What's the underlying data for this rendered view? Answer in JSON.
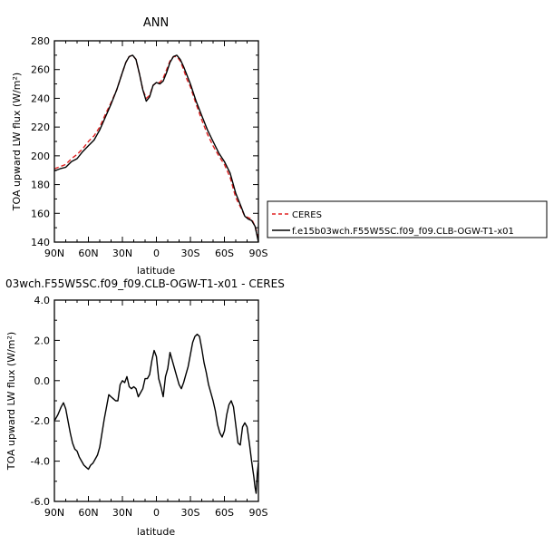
{
  "chart_data": [
    {
      "type": "line",
      "title": "ANN",
      "xlabel": "latitude",
      "ylabel": "TOA upward LW flux (W/m²)",
      "ylim": [
        140,
        280
      ],
      "yticks": [
        140,
        160,
        180,
        200,
        220,
        240,
        260,
        280
      ],
      "xlim": [
        90,
        -90
      ],
      "xticks": [
        90,
        60,
        30,
        0,
        -30,
        -60,
        -90
      ],
      "xtick_labels": [
        "90N",
        "60N",
        "30N",
        "0",
        "30S",
        "60S",
        "90S"
      ],
      "legend_placement": "right, outside plot",
      "series": [
        {
          "name": "CERES",
          "color": "#e02020",
          "dash": "dashed",
          "x": [
            90,
            85,
            80,
            75,
            70,
            65,
            60,
            55,
            50,
            45,
            40,
            35,
            30,
            27,
            24,
            21,
            18,
            15,
            12,
            9,
            6,
            3,
            0,
            -3,
            -6,
            -9,
            -12,
            -15,
            -18,
            -21,
            -24,
            -27,
            -30,
            -35,
            -40,
            -45,
            -50,
            -55,
            -60,
            -65,
            -70,
            -75,
            -78,
            -81,
            -84,
            -87,
            -90
          ],
          "y": [
            191,
            192.5,
            194,
            198,
            201,
            205,
            210,
            214,
            220,
            229,
            237,
            246,
            258,
            265,
            269,
            270,
            267,
            257,
            246,
            240,
            242,
            249,
            251,
            251,
            254,
            260,
            266,
            269,
            269,
            266,
            260,
            253,
            248,
            236,
            225,
            215,
            207,
            200,
            194,
            185,
            171,
            163,
            158,
            157,
            156,
            151,
            143
          ]
        },
        {
          "name": "f.e15b03wch.F55W5SC.f09_f09.CLB-OGW-T1-x01",
          "color": "#000000",
          "dash": "solid",
          "x": [
            90,
            85,
            80,
            75,
            70,
            65,
            60,
            55,
            50,
            45,
            40,
            35,
            30,
            27,
            24,
            21,
            18,
            15,
            12,
            9,
            6,
            3,
            0,
            -3,
            -6,
            -9,
            -12,
            -15,
            -18,
            -21,
            -24,
            -27,
            -30,
            -35,
            -40,
            -45,
            -50,
            -55,
            -60,
            -65,
            -70,
            -75,
            -78,
            -81,
            -84,
            -87,
            -90
          ],
          "y": [
            189.5,
            191,
            192,
            196,
            198,
            203,
            207,
            211,
            218,
            227,
            236,
            246,
            258,
            265,
            269,
            270,
            267,
            257,
            246,
            238,
            241,
            249,
            251,
            250,
            252,
            258,
            265,
            269,
            270,
            267,
            262,
            256,
            250,
            238,
            228,
            218,
            210,
            202,
            196,
            188,
            174,
            164,
            158,
            156,
            155,
            151,
            140
          ]
        }
      ]
    },
    {
      "type": "line",
      "title": "03wch.F55W5SC.f09_f09.CLB-OGW-T1-x01 - CERES",
      "xlabel": "latitude",
      "ylabel": "TOA upward LW flux (W/m²)",
      "ylim": [
        -6,
        4
      ],
      "yticks": [
        -6,
        -4,
        -2,
        0,
        2,
        4
      ],
      "ytick_labels": [
        "-6.0",
        "-4.0",
        "-2.0",
        "0.0",
        "2.0",
        "4.0"
      ],
      "xlim": [
        90,
        -90
      ],
      "xticks": [
        90,
        60,
        30,
        0,
        -30,
        -60,
        -90
      ],
      "xtick_labels": [
        "90N",
        "60N",
        "30N",
        "0",
        "30S",
        "60S",
        "90S"
      ],
      "series": [
        {
          "color": "#000000",
          "dash": "solid",
          "x": [
            90,
            87,
            84,
            82,
            80,
            78,
            76,
            74,
            72,
            70,
            68,
            66,
            64,
            62,
            60,
            58,
            56,
            54,
            52,
            50,
            48,
            46,
            44,
            42,
            40,
            38,
            36,
            34,
            32,
            30,
            28,
            26,
            24,
            22,
            20,
            18,
            16,
            14,
            12,
            10,
            8,
            6,
            4,
            2,
            0,
            -2,
            -4,
            -6,
            -8,
            -10,
            -12,
            -14,
            -16,
            -18,
            -20,
            -22,
            -24,
            -26,
            -28,
            -30,
            -32,
            -34,
            -36,
            -38,
            -40,
            -42,
            -44,
            -46,
            -48,
            -50,
            -52,
            -54,
            -56,
            -58,
            -60,
            -62,
            -64,
            -66,
            -68,
            -70,
            -72,
            -74,
            -76,
            -78,
            -80,
            -82,
            -84,
            -86,
            -87,
            -88,
            -89,
            -90
          ],
          "y": [
            -2.0,
            -1.7,
            -1.3,
            -1.1,
            -1.4,
            -2.0,
            -2.6,
            -3.1,
            -3.4,
            -3.5,
            -3.8,
            -4.0,
            -4.2,
            -4.3,
            -4.4,
            -4.2,
            -4.1,
            -3.9,
            -3.7,
            -3.3,
            -2.6,
            -1.9,
            -1.3,
            -0.7,
            -0.8,
            -0.9,
            -1.0,
            -1.0,
            -0.2,
            0.0,
            -0.1,
            0.2,
            -0.3,
            -0.4,
            -0.3,
            -0.4,
            -0.8,
            -0.6,
            -0.4,
            0.1,
            0.1,
            0.3,
            1.0,
            1.5,
            1.2,
            0.1,
            -0.3,
            -0.8,
            0.2,
            0.6,
            1.4,
            1.0,
            0.6,
            0.2,
            -0.2,
            -0.4,
            -0.1,
            0.3,
            0.7,
            1.3,
            1.9,
            2.2,
            2.3,
            2.2,
            1.6,
            0.9,
            0.4,
            -0.2,
            -0.6,
            -1.0,
            -1.5,
            -2.2,
            -2.6,
            -2.8,
            -2.5,
            -1.7,
            -1.2,
            -1.0,
            -1.3,
            -2.2,
            -3.1,
            -3.2,
            -2.3,
            -2.1,
            -2.3,
            -3.1,
            -4.0,
            -4.8,
            -5.3,
            -5.6,
            -4.6,
            -4.1
          ]
        }
      ]
    }
  ]
}
